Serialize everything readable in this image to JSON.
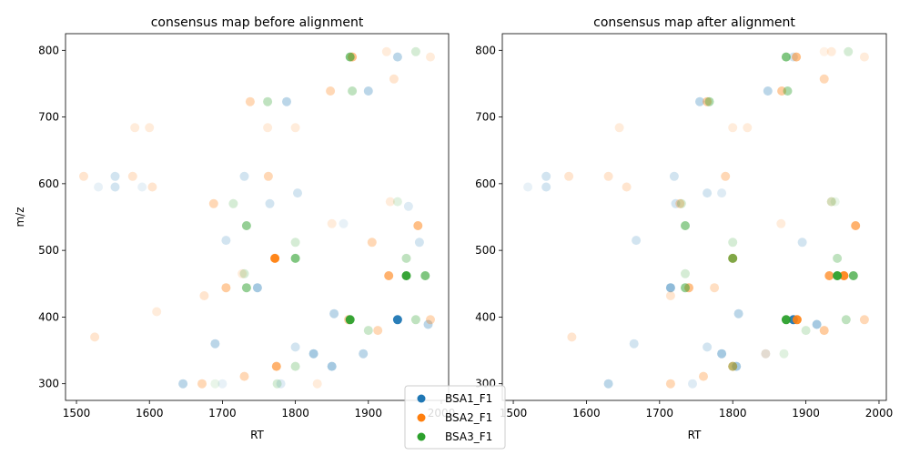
{
  "colors": {
    "BSA1_F1": "#1f77b4",
    "BSA2_F1": "#ff7f0e",
    "BSA3_F1": "#2ca02c"
  },
  "chart_data": [
    {
      "type": "scatter",
      "title": "consensus map before alignment",
      "xlabel": "RT",
      "ylabel": "m/z",
      "xlim": [
        1485,
        2010
      ],
      "ylim": [
        275,
        825
      ],
      "xticks": [
        1500,
        1600,
        1700,
        1800,
        1900,
        2000
      ],
      "yticks": [
        300,
        400,
        500,
        600,
        700,
        800
      ],
      "grid": false,
      "series": [
        {
          "name": "BSA1_F1",
          "points": [
            {
              "x": 1940,
              "y": 790,
              "a": 0.3
            },
            {
              "x": 1900,
              "y": 739,
              "a": 0.3
            },
            {
              "x": 1788,
              "y": 723,
              "a": 0.3
            },
            {
              "x": 1553,
              "y": 611,
              "a": 0.2
            },
            {
              "x": 1553,
              "y": 595,
              "a": 0.2
            },
            {
              "x": 1730,
              "y": 611,
              "a": 0.2
            },
            {
              "x": 1765,
              "y": 570,
              "a": 0.2
            },
            {
              "x": 1803,
              "y": 586,
              "a": 0.2
            },
            {
              "x": 1705,
              "y": 515,
              "a": 0.2
            },
            {
              "x": 1748,
              "y": 444,
              "a": 0.4
            },
            {
              "x": 1853,
              "y": 405,
              "a": 0.3
            },
            {
              "x": 1940,
              "y": 396,
              "a": 0.95
            },
            {
              "x": 1893,
              "y": 345,
              "a": 0.3
            },
            {
              "x": 1825,
              "y": 345,
              "a": 0.4
            },
            {
              "x": 1850,
              "y": 326,
              "a": 0.4
            },
            {
              "x": 1690,
              "y": 360,
              "a": 0.3
            },
            {
              "x": 1646,
              "y": 300,
              "a": 0.3
            },
            {
              "x": 1982,
              "y": 389,
              "a": 0.3
            },
            {
              "x": 1970,
              "y": 512,
              "a": 0.2
            },
            {
              "x": 1800,
              "y": 355,
              "a": 0.2
            },
            {
              "x": 1530,
              "y": 595,
              "a": 0.1
            },
            {
              "x": 1590,
              "y": 595,
              "a": 0.1
            },
            {
              "x": 1955,
              "y": 566,
              "a": 0.15
            },
            {
              "x": 1866,
              "y": 540,
              "a": 0.1
            },
            {
              "x": 1780,
              "y": 300,
              "a": 0.15
            },
            {
              "x": 1700,
              "y": 300,
              "a": 0.1
            }
          ]
        },
        {
          "name": "BSA2_F1",
          "points": [
            {
              "x": 1878,
              "y": 790,
              "a": 0.5
            },
            {
              "x": 1848,
              "y": 739,
              "a": 0.3
            },
            {
              "x": 1738,
              "y": 723,
              "a": 0.3
            },
            {
              "x": 1763,
              "y": 611,
              "a": 0.3
            },
            {
              "x": 1688,
              "y": 570,
              "a": 0.3
            },
            {
              "x": 1772,
              "y": 488,
              "a": 0.95
            },
            {
              "x": 1968,
              "y": 537,
              "a": 0.5
            },
            {
              "x": 1928,
              "y": 462,
              "a": 0.6
            },
            {
              "x": 1705,
              "y": 444,
              "a": 0.4
            },
            {
              "x": 1873,
              "y": 396,
              "a": 0.4
            },
            {
              "x": 1985,
              "y": 396,
              "a": 0.3
            },
            {
              "x": 1913,
              "y": 380,
              "a": 0.3
            },
            {
              "x": 1774,
              "y": 326,
              "a": 0.6
            },
            {
              "x": 1672,
              "y": 300,
              "a": 0.3
            },
            {
              "x": 1730,
              "y": 311,
              "a": 0.3
            },
            {
              "x": 1935,
              "y": 757,
              "a": 0.2
            },
            {
              "x": 1905,
              "y": 512,
              "a": 0.3
            },
            {
              "x": 1510,
              "y": 611,
              "a": 0.2
            },
            {
              "x": 1577,
              "y": 611,
              "a": 0.2
            },
            {
              "x": 1604,
              "y": 595,
              "a": 0.2
            },
            {
              "x": 1525,
              "y": 370,
              "a": 0.2
            },
            {
              "x": 1610,
              "y": 408,
              "a": 0.15
            },
            {
              "x": 1675,
              "y": 432,
              "a": 0.2
            },
            {
              "x": 1600,
              "y": 684,
              "a": 0.15
            },
            {
              "x": 1580,
              "y": 684,
              "a": 0.15
            },
            {
              "x": 1762,
              "y": 684,
              "a": 0.15
            },
            {
              "x": 1800,
              "y": 684,
              "a": 0.15
            },
            {
              "x": 1850,
              "y": 540,
              "a": 0.15
            },
            {
              "x": 1830,
              "y": 300,
              "a": 0.15
            },
            {
              "x": 1925,
              "y": 798,
              "a": 0.15
            },
            {
              "x": 1985,
              "y": 790,
              "a": 0.15
            },
            {
              "x": 1930,
              "y": 573,
              "a": 0.15
            },
            {
              "x": 1727,
              "y": 465,
              "a": 0.15
            }
          ]
        },
        {
          "name": "BSA3_F1",
          "points": [
            {
              "x": 1875,
              "y": 790,
              "a": 0.6
            },
            {
              "x": 1878,
              "y": 739,
              "a": 0.3
            },
            {
              "x": 1762,
              "y": 723,
              "a": 0.3
            },
            {
              "x": 1733,
              "y": 537,
              "a": 0.5
            },
            {
              "x": 1800,
              "y": 488,
              "a": 0.6
            },
            {
              "x": 1800,
              "y": 512,
              "a": 0.2
            },
            {
              "x": 1952,
              "y": 462,
              "a": 0.95
            },
            {
              "x": 1978,
              "y": 462,
              "a": 0.6
            },
            {
              "x": 1952,
              "y": 488,
              "a": 0.3
            },
            {
              "x": 1733,
              "y": 444,
              "a": 0.5
            },
            {
              "x": 1875,
              "y": 396,
              "a": 0.95
            },
            {
              "x": 1965,
              "y": 396,
              "a": 0.3
            },
            {
              "x": 1900,
              "y": 380,
              "a": 0.25
            },
            {
              "x": 1800,
              "y": 326,
              "a": 0.25
            },
            {
              "x": 1715,
              "y": 570,
              "a": 0.2
            },
            {
              "x": 1775,
              "y": 300,
              "a": 0.2
            },
            {
              "x": 1965,
              "y": 798,
              "a": 0.2
            },
            {
              "x": 1940,
              "y": 573,
              "a": 0.15
            },
            {
              "x": 1730,
              "y": 465,
              "a": 0.2
            },
            {
              "x": 1690,
              "y": 300,
              "a": 0.1
            }
          ]
        }
      ]
    },
    {
      "type": "scatter",
      "title": "consensus map after alignment",
      "xlabel": "RT",
      "ylabel": "",
      "xlim": [
        1485,
        2010
      ],
      "ylim": [
        275,
        825
      ],
      "xticks": [
        1500,
        1600,
        1700,
        1800,
        1900,
        2000
      ],
      "yticks": [
        300,
        400,
        500,
        600,
        700,
        800
      ],
      "grid": false,
      "series": [
        {
          "name": "BSA1_F1",
          "points": [
            {
              "x": 1848,
              "y": 739,
              "a": 0.3
            },
            {
              "x": 1755,
              "y": 723,
              "a": 0.3
            },
            {
              "x": 1883,
              "y": 396,
              "a": 0.95
            },
            {
              "x": 1915,
              "y": 389,
              "a": 0.4
            },
            {
              "x": 1715,
              "y": 444,
              "a": 0.5
            },
            {
              "x": 1785,
              "y": 345,
              "a": 0.4
            },
            {
              "x": 1805,
              "y": 326,
              "a": 0.4
            },
            {
              "x": 1630,
              "y": 300,
              "a": 0.3
            },
            {
              "x": 1545,
              "y": 611,
              "a": 0.2
            },
            {
              "x": 1545,
              "y": 595,
              "a": 0.2
            },
            {
              "x": 1720,
              "y": 611,
              "a": 0.2
            },
            {
              "x": 1765,
              "y": 586,
              "a": 0.2
            },
            {
              "x": 1722,
              "y": 570,
              "a": 0.2
            },
            {
              "x": 1668,
              "y": 515,
              "a": 0.2
            },
            {
              "x": 1808,
              "y": 405,
              "a": 0.3
            },
            {
              "x": 1665,
              "y": 360,
              "a": 0.2
            },
            {
              "x": 1765,
              "y": 355,
              "a": 0.2
            },
            {
              "x": 1883,
              "y": 790,
              "a": 0.2
            },
            {
              "x": 1895,
              "y": 512,
              "a": 0.2
            },
            {
              "x": 1520,
              "y": 595,
              "a": 0.1
            },
            {
              "x": 1845,
              "y": 345,
              "a": 0.15
            },
            {
              "x": 1745,
              "y": 300,
              "a": 0.15
            },
            {
              "x": 1785,
              "y": 586,
              "a": 0.15
            }
          ]
        },
        {
          "name": "BSA2_F1",
          "points": [
            {
              "x": 1887,
              "y": 790,
              "a": 0.5
            },
            {
              "x": 1867,
              "y": 739,
              "a": 0.4
            },
            {
              "x": 1765,
              "y": 723,
              "a": 0.4
            },
            {
              "x": 1790,
              "y": 611,
              "a": 0.3
            },
            {
              "x": 1728,
              "y": 570,
              "a": 0.3
            },
            {
              "x": 1800,
              "y": 488,
              "a": 0.6
            },
            {
              "x": 1968,
              "y": 537,
              "a": 0.6
            },
            {
              "x": 1932,
              "y": 462,
              "a": 0.7
            },
            {
              "x": 1952,
              "y": 462,
              "a": 0.9
            },
            {
              "x": 1740,
              "y": 444,
              "a": 0.5
            },
            {
              "x": 1888,
              "y": 396,
              "a": 0.9
            },
            {
              "x": 1980,
              "y": 396,
              "a": 0.3
            },
            {
              "x": 1925,
              "y": 380,
              "a": 0.4
            },
            {
              "x": 1800,
              "y": 326,
              "a": 0.5
            },
            {
              "x": 1715,
              "y": 300,
              "a": 0.3
            },
            {
              "x": 1760,
              "y": 311,
              "a": 0.3
            },
            {
              "x": 1925,
              "y": 757,
              "a": 0.3
            },
            {
              "x": 1630,
              "y": 611,
              "a": 0.2
            },
            {
              "x": 1576,
              "y": 611,
              "a": 0.2
            },
            {
              "x": 1655,
              "y": 595,
              "a": 0.2
            },
            {
              "x": 1580,
              "y": 370,
              "a": 0.2
            },
            {
              "x": 1715,
              "y": 432,
              "a": 0.2
            },
            {
              "x": 1775,
              "y": 444,
              "a": 0.25
            },
            {
              "x": 1645,
              "y": 684,
              "a": 0.15
            },
            {
              "x": 1800,
              "y": 684,
              "a": 0.15
            },
            {
              "x": 1820,
              "y": 684,
              "a": 0.15
            },
            {
              "x": 1866,
              "y": 540,
              "a": 0.15
            },
            {
              "x": 1935,
              "y": 798,
              "a": 0.15
            },
            {
              "x": 1980,
              "y": 790,
              "a": 0.15
            },
            {
              "x": 1925,
              "y": 798,
              "a": 0.1
            },
            {
              "x": 1845,
              "y": 345,
              "a": 0.15
            },
            {
              "x": 1935,
              "y": 573,
              "a": 0.15
            }
          ]
        },
        {
          "name": "BSA3_F1",
          "points": [
            {
              "x": 1873,
              "y": 790,
              "a": 0.6
            },
            {
              "x": 1875,
              "y": 739,
              "a": 0.4
            },
            {
              "x": 1768,
              "y": 723,
              "a": 0.4
            },
            {
              "x": 1735,
              "y": 537,
              "a": 0.5
            },
            {
              "x": 1800,
              "y": 488,
              "a": 0.6
            },
            {
              "x": 1800,
              "y": 512,
              "a": 0.2
            },
            {
              "x": 1943,
              "y": 462,
              "a": 0.95
            },
            {
              "x": 1965,
              "y": 462,
              "a": 0.7
            },
            {
              "x": 1943,
              "y": 488,
              "a": 0.3
            },
            {
              "x": 1735,
              "y": 444,
              "a": 0.5
            },
            {
              "x": 1873,
              "y": 396,
              "a": 0.95
            },
            {
              "x": 1955,
              "y": 396,
              "a": 0.3
            },
            {
              "x": 1900,
              "y": 380,
              "a": 0.2
            },
            {
              "x": 1800,
              "y": 326,
              "a": 0.3
            },
            {
              "x": 1730,
              "y": 570,
              "a": 0.2
            },
            {
              "x": 1935,
              "y": 573,
              "a": 0.2
            },
            {
              "x": 1958,
              "y": 798,
              "a": 0.2
            },
            {
              "x": 1735,
              "y": 465,
              "a": 0.2
            },
            {
              "x": 1870,
              "y": 345,
              "a": 0.15
            },
            {
              "x": 1940,
              "y": 573,
              "a": 0.1
            }
          ]
        }
      ]
    }
  ],
  "legend": {
    "placement": "bottom-center",
    "entries": [
      "BSA1_F1",
      "BSA2_F1",
      "BSA3_F1"
    ]
  }
}
